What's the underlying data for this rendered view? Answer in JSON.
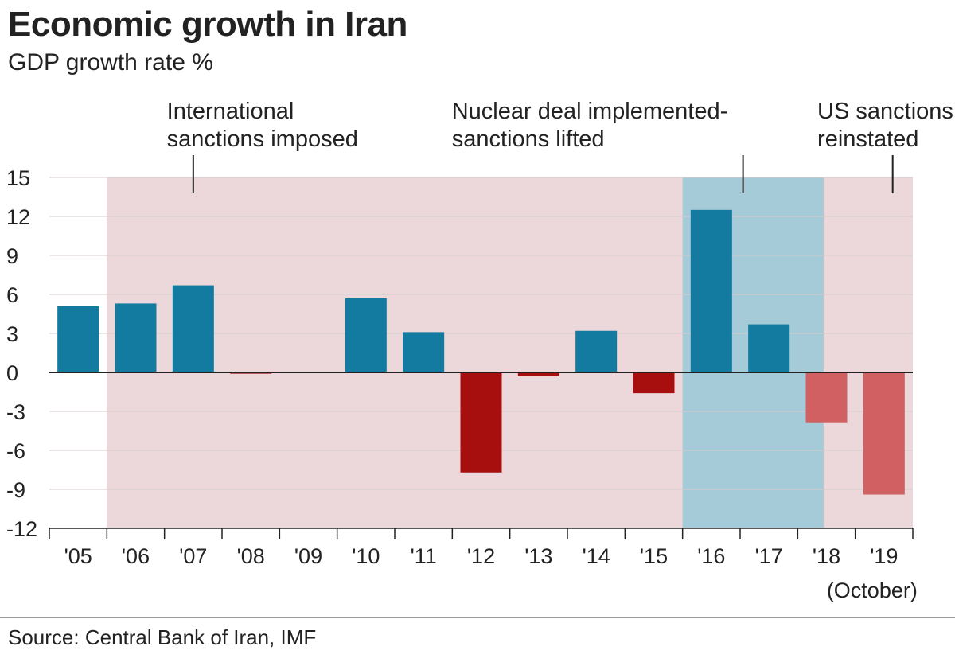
{
  "title": "Economic growth in Iran",
  "subtitle": "GDP growth rate %",
  "source": "Source: Central Bank of Iran, IMF",
  "colors": {
    "positive": "#137ba0",
    "negative": "#a70f0f",
    "negative_light": "#d06061",
    "sanctions_band": "#ecd8da",
    "deal_band": "#a5cad8",
    "grid": "#d6cccc",
    "axis": "#222222"
  },
  "chart_data": {
    "type": "bar",
    "title": "Economic growth in Iran",
    "subtitle": "GDP growth rate %",
    "categories": [
      "'05",
      "'06",
      "'07",
      "'08",
      "'09",
      "'10",
      "'11",
      "'12",
      "'13",
      "'14",
      "'15",
      "'16",
      "'17",
      "'18",
      "'19"
    ],
    "category_sublabels": [
      "",
      "",
      "",
      "",
      "",
      "",
      "",
      "",
      "",
      "",
      "",
      "",
      "",
      "",
      "(October)"
    ],
    "values": [
      5.1,
      5.3,
      6.7,
      -0.1,
      0,
      5.7,
      3.1,
      -7.7,
      -0.3,
      3.2,
      -1.6,
      12.5,
      3.7,
      -3.9,
      -9.4
    ],
    "projected": [
      false,
      false,
      false,
      false,
      false,
      false,
      false,
      false,
      false,
      false,
      false,
      false,
      false,
      true,
      true
    ],
    "ylim": [
      -12,
      15
    ],
    "yticks": [
      15,
      12,
      9,
      6,
      3,
      0,
      -3,
      -6,
      -9,
      -12
    ],
    "grid": true,
    "bands": [
      {
        "kind": "sanctions",
        "from_index": 0.5,
        "to_index": 14.5
      },
      {
        "kind": "deal",
        "from_index": 10.5,
        "to_index": 12.95
      }
    ],
    "annotations": [
      {
        "lines": [
          "International",
          "sanctions imposed"
        ],
        "at_index": 2,
        "anchor": "start",
        "text_index": 2
      },
      {
        "lines": [
          "Nuclear deal implemented-",
          "sanctions lifted"
        ],
        "at_index": 11.55,
        "anchor": "start",
        "text_index": 6.95
      },
      {
        "lines": [
          "US sanctions",
          "reinstated"
        ],
        "at_index": 14.15,
        "anchor": "start",
        "text_index": 13.3
      }
    ]
  }
}
